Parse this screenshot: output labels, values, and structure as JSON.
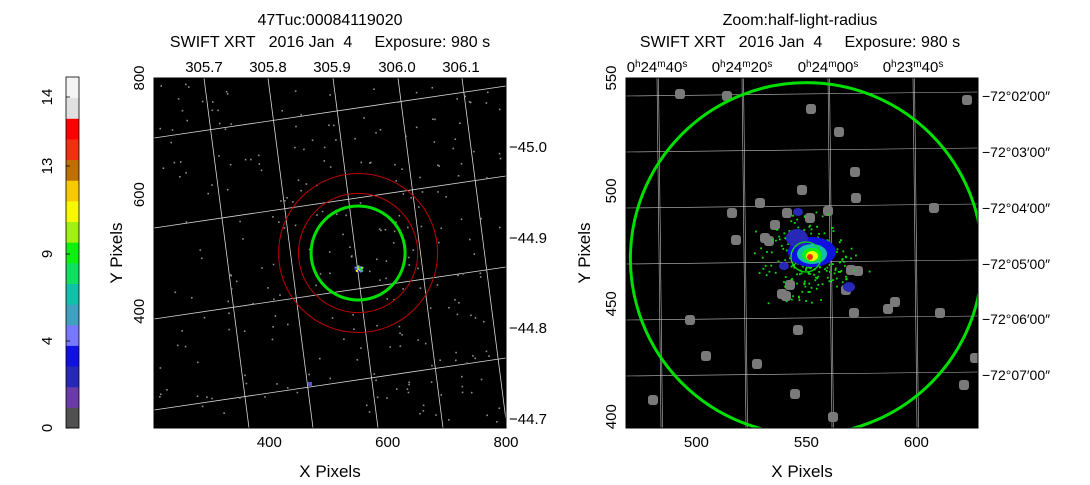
{
  "colorbar": {
    "ticks": [
      "0",
      "4",
      "9",
      "13",
      "14"
    ],
    "tick_values": [
      0,
      4,
      9,
      13,
      14
    ],
    "colors": [
      "#505050",
      "#6a3aa8",
      "#2828b8",
      "#1010e0",
      "#7878ff",
      "#40a0c0",
      "#10c0a8",
      "#10e060",
      "#10f010",
      "#a0f010",
      "#f8f800",
      "#f8c800",
      "#c07000",
      "#f03010",
      "#ff0000",
      "#e0e0e0",
      "#f4f4f4"
    ]
  },
  "chart_data": [
    {
      "type": "heatmap",
      "title_line1": "47Tuc:00084119020",
      "title_line2": "SWIFT XRT   2016 Jan  4     Exposure: 980 s",
      "xlabel": "X Pixels",
      "ylabel": "Y Pixels",
      "xlim": [
        205,
        800
      ],
      "ylim": [
        200,
        800
      ],
      "x_ticks": [
        400,
        600,
        800
      ],
      "y_ticks": [
        400,
        600,
        800
      ],
      "top_ticks": [
        "305.7",
        "305.8",
        "305.9",
        "306.0",
        "306.1"
      ],
      "right_ticks": [
        "−45.0",
        "−44.9",
        "−44.8",
        "−44.7"
      ],
      "source_region": {
        "x": 550,
        "y": 500,
        "radius": 80,
        "color": "#00e000"
      },
      "background_annulus": {
        "x": 550,
        "y": 500,
        "r_inner": 120,
        "r_outer": 160,
        "color": "#c00000"
      }
    },
    {
      "type": "heatmap",
      "title_line1": "Zoom:half-light-radius",
      "title_line2": "SWIFT XRT   2016 Jan  4     Exposure: 980 s",
      "xlabel": "X Pixels",
      "ylabel": "Y Pixels",
      "xlim": [
        468,
        628
      ],
      "ylim": [
        395,
        550
      ],
      "x_ticks": [
        500,
        550,
        600
      ],
      "y_ticks": [
        400,
        450,
        500,
        550
      ],
      "top_ticks": [
        {
          "h": "0",
          "m": "24",
          "s": "40"
        },
        {
          "h": "0",
          "m": "24",
          "s": "20"
        },
        {
          "h": "0",
          "m": "24",
          "s": "00"
        },
        {
          "h": "0",
          "m": "23",
          "s": "40"
        }
      ],
      "right_ticks": [
        "−72°02′00″",
        "−72°03′00″",
        "−72°04′00″",
        "−72°05′00″",
        "−72°06′00″",
        "−72°07′00″"
      ],
      "half_light_circle": {
        "x": 550,
        "y": 470,
        "radius": 80,
        "color": "#00e000"
      }
    }
  ]
}
